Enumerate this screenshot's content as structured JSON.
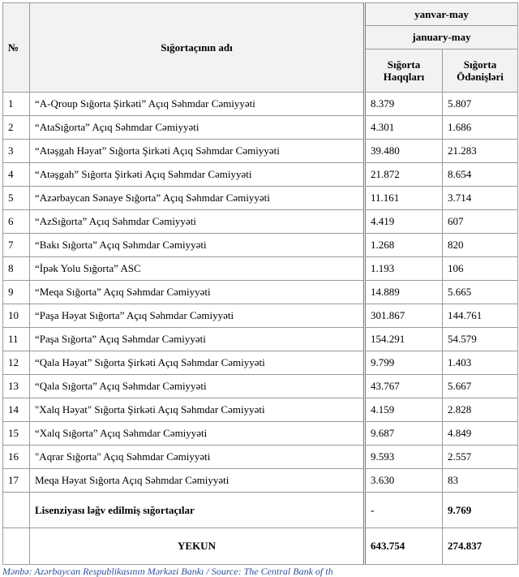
{
  "header": {
    "number": "№",
    "name": "Sığortaçının adı",
    "period_az": "yanvar-may",
    "period_en": "january-may",
    "col1": "Sığorta Haqqları",
    "col2": "Sığorta Ödənişləri"
  },
  "table": {
    "rows": [
      [
        "1",
        "“A-Qroup Sığorta Şirkəti” Açıq Səhmdar Cəmiyyəti",
        "8.379",
        "5.807"
      ],
      [
        "2",
        "“AtaSığorta” Açıq Səhmdar Cəmiyyəti",
        "4.301",
        "1.686"
      ],
      [
        "3",
        "“Atəşgah Həyat” Sığorta Şirkəti Açıq Səhmdar Cəmiyyəti",
        "39.480",
        "21.283"
      ],
      [
        "4",
        "“Atəşgah” Sığorta Şirkəti Açıq Səhmdar Cəmiyyəti",
        "21.872",
        "8.654"
      ],
      [
        "5",
        "“Azərbaycan Sənaye Sığorta” Açıq Səhmdar Cəmiyyəti",
        "11.161",
        "3.714"
      ],
      [
        "6",
        "“AzSığorta” Açıq Səhmdar Cəmiyyəti",
        "4.419",
        "607"
      ],
      [
        "7",
        "“Bakı Sığorta” Açıq Səhmdar Cəmiyyəti",
        "1.268",
        "820"
      ],
      [
        "8",
        "“İpək Yolu Sığorta” ASC",
        "1.193",
        "106"
      ],
      [
        "9",
        "“Meqa Sığorta” Açıq Səhmdar Cəmiyyəti",
        "14.889",
        "5.665"
      ],
      [
        "10",
        "“Paşa Həyat Sığorta” Açıq Səhmdar Cəmiyyəti",
        "301.867",
        "144.761"
      ],
      [
        "11",
        "“Paşa Sığorta” Açıq Səhmdar Cəmiyyəti",
        "154.291",
        "54.579"
      ],
      [
        "12",
        "“Qala Həyat” Sığorta Şirkəti Açıq Səhmdar Cəmiyyəti",
        "9.799",
        "1.403"
      ],
      [
        "13",
        "“Qala Sığorta” Açıq Səhmdar Cəmiyyəti",
        "43.767",
        "5.667"
      ],
      [
        "14",
        "\"Xalq Həyat\" Sığorta Şirkəti Açıq Səhmdar Cəmiyyəti",
        "4.159",
        "2.828"
      ],
      [
        "15",
        "“Xalq Sığorta” Açıq Səhmdar Cəmiyyəti",
        "9.687",
        "4.849"
      ],
      [
        "16",
        "\"Aqrar Sığorta\" Açıq Səhmdar Cəmiyyəti",
        "9.593",
        "2.557"
      ],
      [
        "17",
        "Meqa Həyat Sığorta Açıq Səhmdar Cəmiyyəti",
        "3.630",
        "83"
      ]
    ],
    "revoked": {
      "name": "Lisenziyası ləğv edilmiş sığortaçılar",
      "col1": "-",
      "col2": "9.769"
    },
    "total": {
      "name": "YEKUN",
      "col1": "643.754",
      "col2": "274.837"
    }
  },
  "footer": {
    "source_az": "Mənbə: Azərbaycan Respublikasının Mərkəzi Bankı",
    "source_en": " / Source: The Central Bank of th"
  }
}
